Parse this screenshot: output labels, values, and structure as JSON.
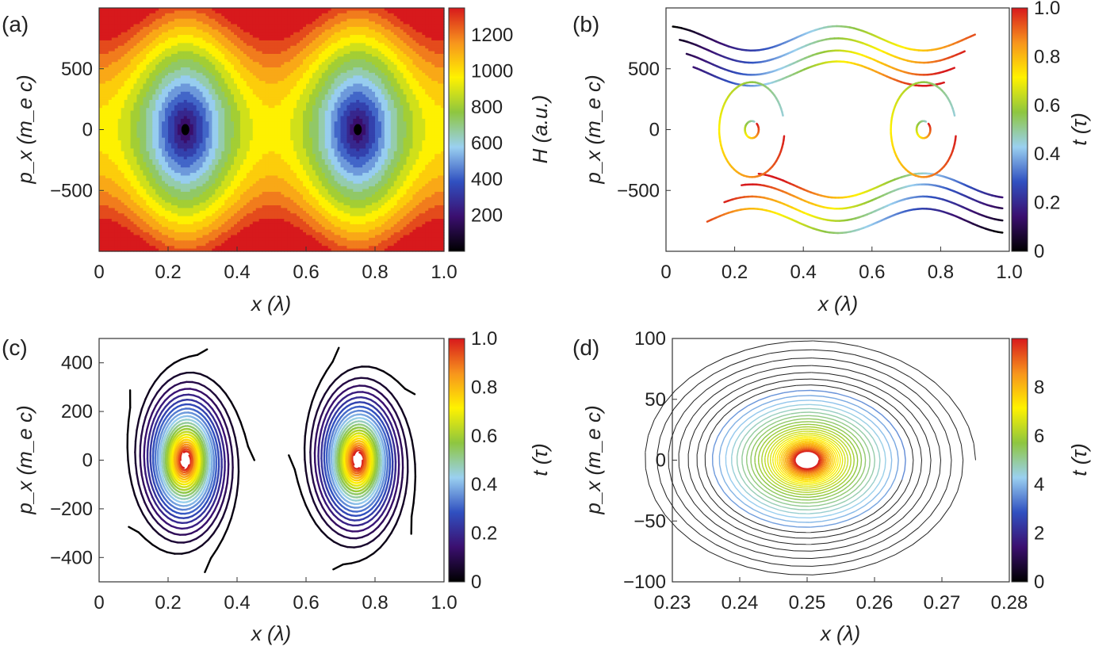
{
  "colormap": [
    "#000000",
    "#3b0f6f",
    "#3050c0",
    "#9ad0f0",
    "#8ec63f",
    "#fff200",
    "#f7941d",
    "#d7191c"
  ],
  "chart_data": [
    {
      "panel": "(a)",
      "type": "heatmap",
      "description_of_values": "H(x,px) contour map, two potential wells at x=0.25 and x=0.75 with minimum near px=0",
      "xlabel": "x (λ)",
      "ylabel": "p_x (m_e c)",
      "xlim": [
        0,
        1.0
      ],
      "ylim": [
        -1000,
        1000
      ],
      "xticks": [
        0,
        0.2,
        0.4,
        0.6,
        0.8,
        1.0
      ],
      "xticklabels": [
        "0",
        "0.2",
        "0.4",
        "0.6",
        "0.8",
        "1.0"
      ],
      "yticks": [
        -500,
        0,
        500
      ],
      "yticklabels": [
        "−500",
        "0",
        "500"
      ],
      "centers": [
        0.25,
        0.75
      ],
      "colorbar": {
        "label": "H (a.u.)",
        "range": [
          0,
          1350
        ],
        "ticks": [
          200,
          400,
          600,
          800,
          1000,
          1200
        ],
        "ticklabels": [
          "200",
          "400",
          "600",
          "800",
          "1000",
          "1200"
        ]
      }
    },
    {
      "panel": "(b)",
      "type": "line",
      "description_of_values": "Electron phase-space trajectories colored by time t (τ); closed orbits around x=0.25 and 0.75, passing orbits above/below",
      "xlabel": "x (λ)",
      "ylabel": "p_x (m_e c)",
      "xlim": [
        0,
        1.0
      ],
      "ylim": [
        -1000,
        1000
      ],
      "xticks": [
        0,
        0.2,
        0.4,
        0.6,
        0.8,
        1.0
      ],
      "xticklabels": [
        "0",
        "0.2",
        "0.4",
        "0.6",
        "0.8",
        "1.0"
      ],
      "yticks": [
        -500,
        0,
        500
      ],
      "yticklabels": [
        "−500",
        "0",
        "500"
      ],
      "passing_orbits": [
        {
          "base": 690,
          "amp": 200,
          "t_offset": 0.0
        },
        {
          "base": 590,
          "amp": 200,
          "t_offset": 0.05
        },
        {
          "base": 490,
          "amp": 200,
          "t_offset": 0.1
        },
        {
          "base": 400,
          "amp": 200,
          "t_offset": 0.15
        }
      ],
      "closed_orbits": [
        {
          "cx": 0.25,
          "rx": 0.095,
          "ry": 390
        },
        {
          "cx": 0.25,
          "rx": 0.02,
          "ry": 70
        },
        {
          "cx": 0.75,
          "rx": 0.095,
          "ry": 390
        },
        {
          "cx": 0.75,
          "rx": 0.02,
          "ry": 70
        }
      ],
      "colorbar": {
        "label": "t (τ)",
        "range": [
          0,
          1.0
        ],
        "ticks": [
          0,
          0.2,
          0.4,
          0.6,
          0.8,
          1.0
        ],
        "ticklabels": [
          "0",
          "0.2",
          "0.4",
          "0.6",
          "0.8",
          "1.0"
        ]
      }
    },
    {
      "panel": "(c)",
      "type": "line",
      "description_of_values": "Spiral trajectories collapsing toward x=0.25 and x=0.75, colored by time t (τ)",
      "xlabel": "x (λ)",
      "ylabel": "p_x (m_e c)",
      "xlim": [
        0,
        1.0
      ],
      "ylim": [
        -500,
        500
      ],
      "xticks": [
        0,
        0.2,
        0.4,
        0.6,
        0.8,
        1.0
      ],
      "xticklabels": [
        "0",
        "0.2",
        "0.4",
        "0.6",
        "0.8",
        "1.0"
      ],
      "yticks": [
        -400,
        -200,
        0,
        200,
        400
      ],
      "yticklabels": [
        "−400",
        "−200",
        "0",
        "200",
        "400"
      ],
      "centers": [
        0.25,
        0.75
      ],
      "colorbar": {
        "label": "t (τ)",
        "range": [
          0,
          1.0
        ],
        "ticks": [
          0,
          0.2,
          0.4,
          0.6,
          0.8,
          1.0
        ],
        "ticklabels": [
          "0",
          "0.2",
          "0.4",
          "0.6",
          "0.8",
          "1.0"
        ]
      }
    },
    {
      "panel": "(d)",
      "type": "line",
      "description_of_values": "Zoomed spiral around x=0.25, orbit radius shrinking with time t (τ) from 0 to ~10",
      "xlabel": "x (λ)",
      "ylabel": "p_x (m_e c)",
      "xlim": [
        0.23,
        0.28
      ],
      "ylim": [
        -100,
        100
      ],
      "xticks": [
        0.23,
        0.24,
        0.25,
        0.26,
        0.27,
        0.28
      ],
      "xticklabels": [
        "0.23",
        "0.24",
        "0.25",
        "0.26",
        "0.27",
        "0.28"
      ],
      "yticks": [
        -100,
        -50,
        0,
        50,
        100
      ],
      "yticklabels": [
        "−100",
        "−50",
        "0",
        "50",
        "100"
      ],
      "center": [
        0.25,
        0
      ],
      "colorbar": {
        "label": "t (τ)",
        "range": [
          0,
          10
        ],
        "ticks": [
          0,
          2,
          4,
          6,
          8
        ],
        "ticklabels": [
          "0",
          "2",
          "4",
          "6",
          "8"
        ]
      }
    }
  ]
}
